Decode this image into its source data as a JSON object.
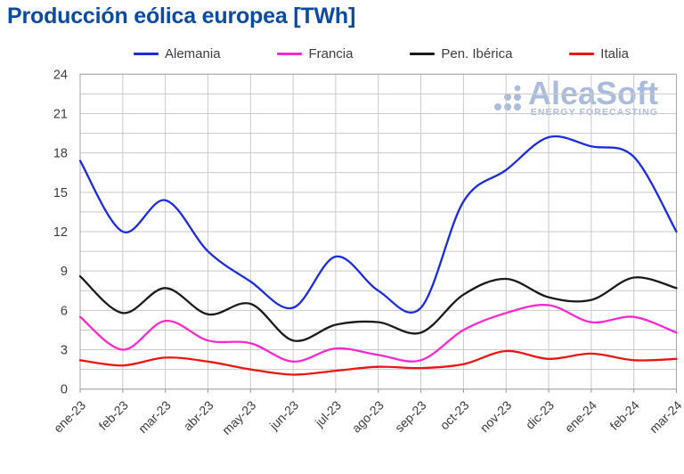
{
  "title": "Producción eólica europea [TWh]",
  "watermark": {
    "name": "AleaSoft",
    "tagline": "ENERGY FORECASTING"
  },
  "colors": {
    "title": "#0c4ba0",
    "watermark": "#9cb0d6",
    "grid": "#c9c9c9",
    "spine": "#a6a6a6",
    "axis_text": "#3d3d3d"
  },
  "chart_data": {
    "type": "line",
    "title": "Producción eólica europea [TWh]",
    "categories": [
      "ene-23",
      "feb-23",
      "mar-23",
      "abr-23",
      "may-23",
      "jun-23",
      "jul-23",
      "ago-23",
      "sep-23",
      "oct-23",
      "nov-23",
      "dic-23",
      "ene-24",
      "feb-24",
      "mar-24"
    ],
    "series": [
      {
        "name": "Alemania",
        "color": "#1b2ce0",
        "values": [
          17.4,
          12.0,
          14.4,
          10.5,
          8.2,
          6.2,
          10.1,
          7.5,
          6.2,
          14.3,
          16.7,
          19.2,
          18.5,
          17.7,
          12.0
        ]
      },
      {
        "name": "Francia",
        "color": "#fb28d2",
        "values": [
          5.5,
          3.0,
          5.2,
          3.7,
          3.5,
          2.1,
          3.1,
          2.6,
          2.2,
          4.5,
          5.8,
          6.4,
          5.1,
          5.5,
          4.3
        ]
      },
      {
        "name": "Pen. Ibérica",
        "color": "#1a1a1a",
        "values": [
          8.6,
          5.8,
          7.7,
          5.7,
          6.5,
          3.7,
          4.9,
          5.1,
          4.3,
          7.2,
          8.4,
          7.0,
          6.8,
          8.5,
          7.7
        ]
      },
      {
        "name": "Italia",
        "color": "#ea1612",
        "values": [
          2.2,
          1.8,
          2.4,
          2.1,
          1.5,
          1.1,
          1.4,
          1.7,
          1.6,
          1.9,
          2.9,
          2.3,
          2.7,
          2.2,
          2.3
        ]
      }
    ],
    "xlabel": "",
    "ylabel": "",
    "ylim": [
      0,
      24
    ],
    "yticks": [
      0,
      3,
      6,
      9,
      12,
      15,
      18,
      21,
      24
    ],
    "y_minor_step": 1.5,
    "grid": "horizontal every 1.5, vertical at each month",
    "legend_position": "top",
    "x_tick_rotation": 45,
    "smooth": true
  }
}
